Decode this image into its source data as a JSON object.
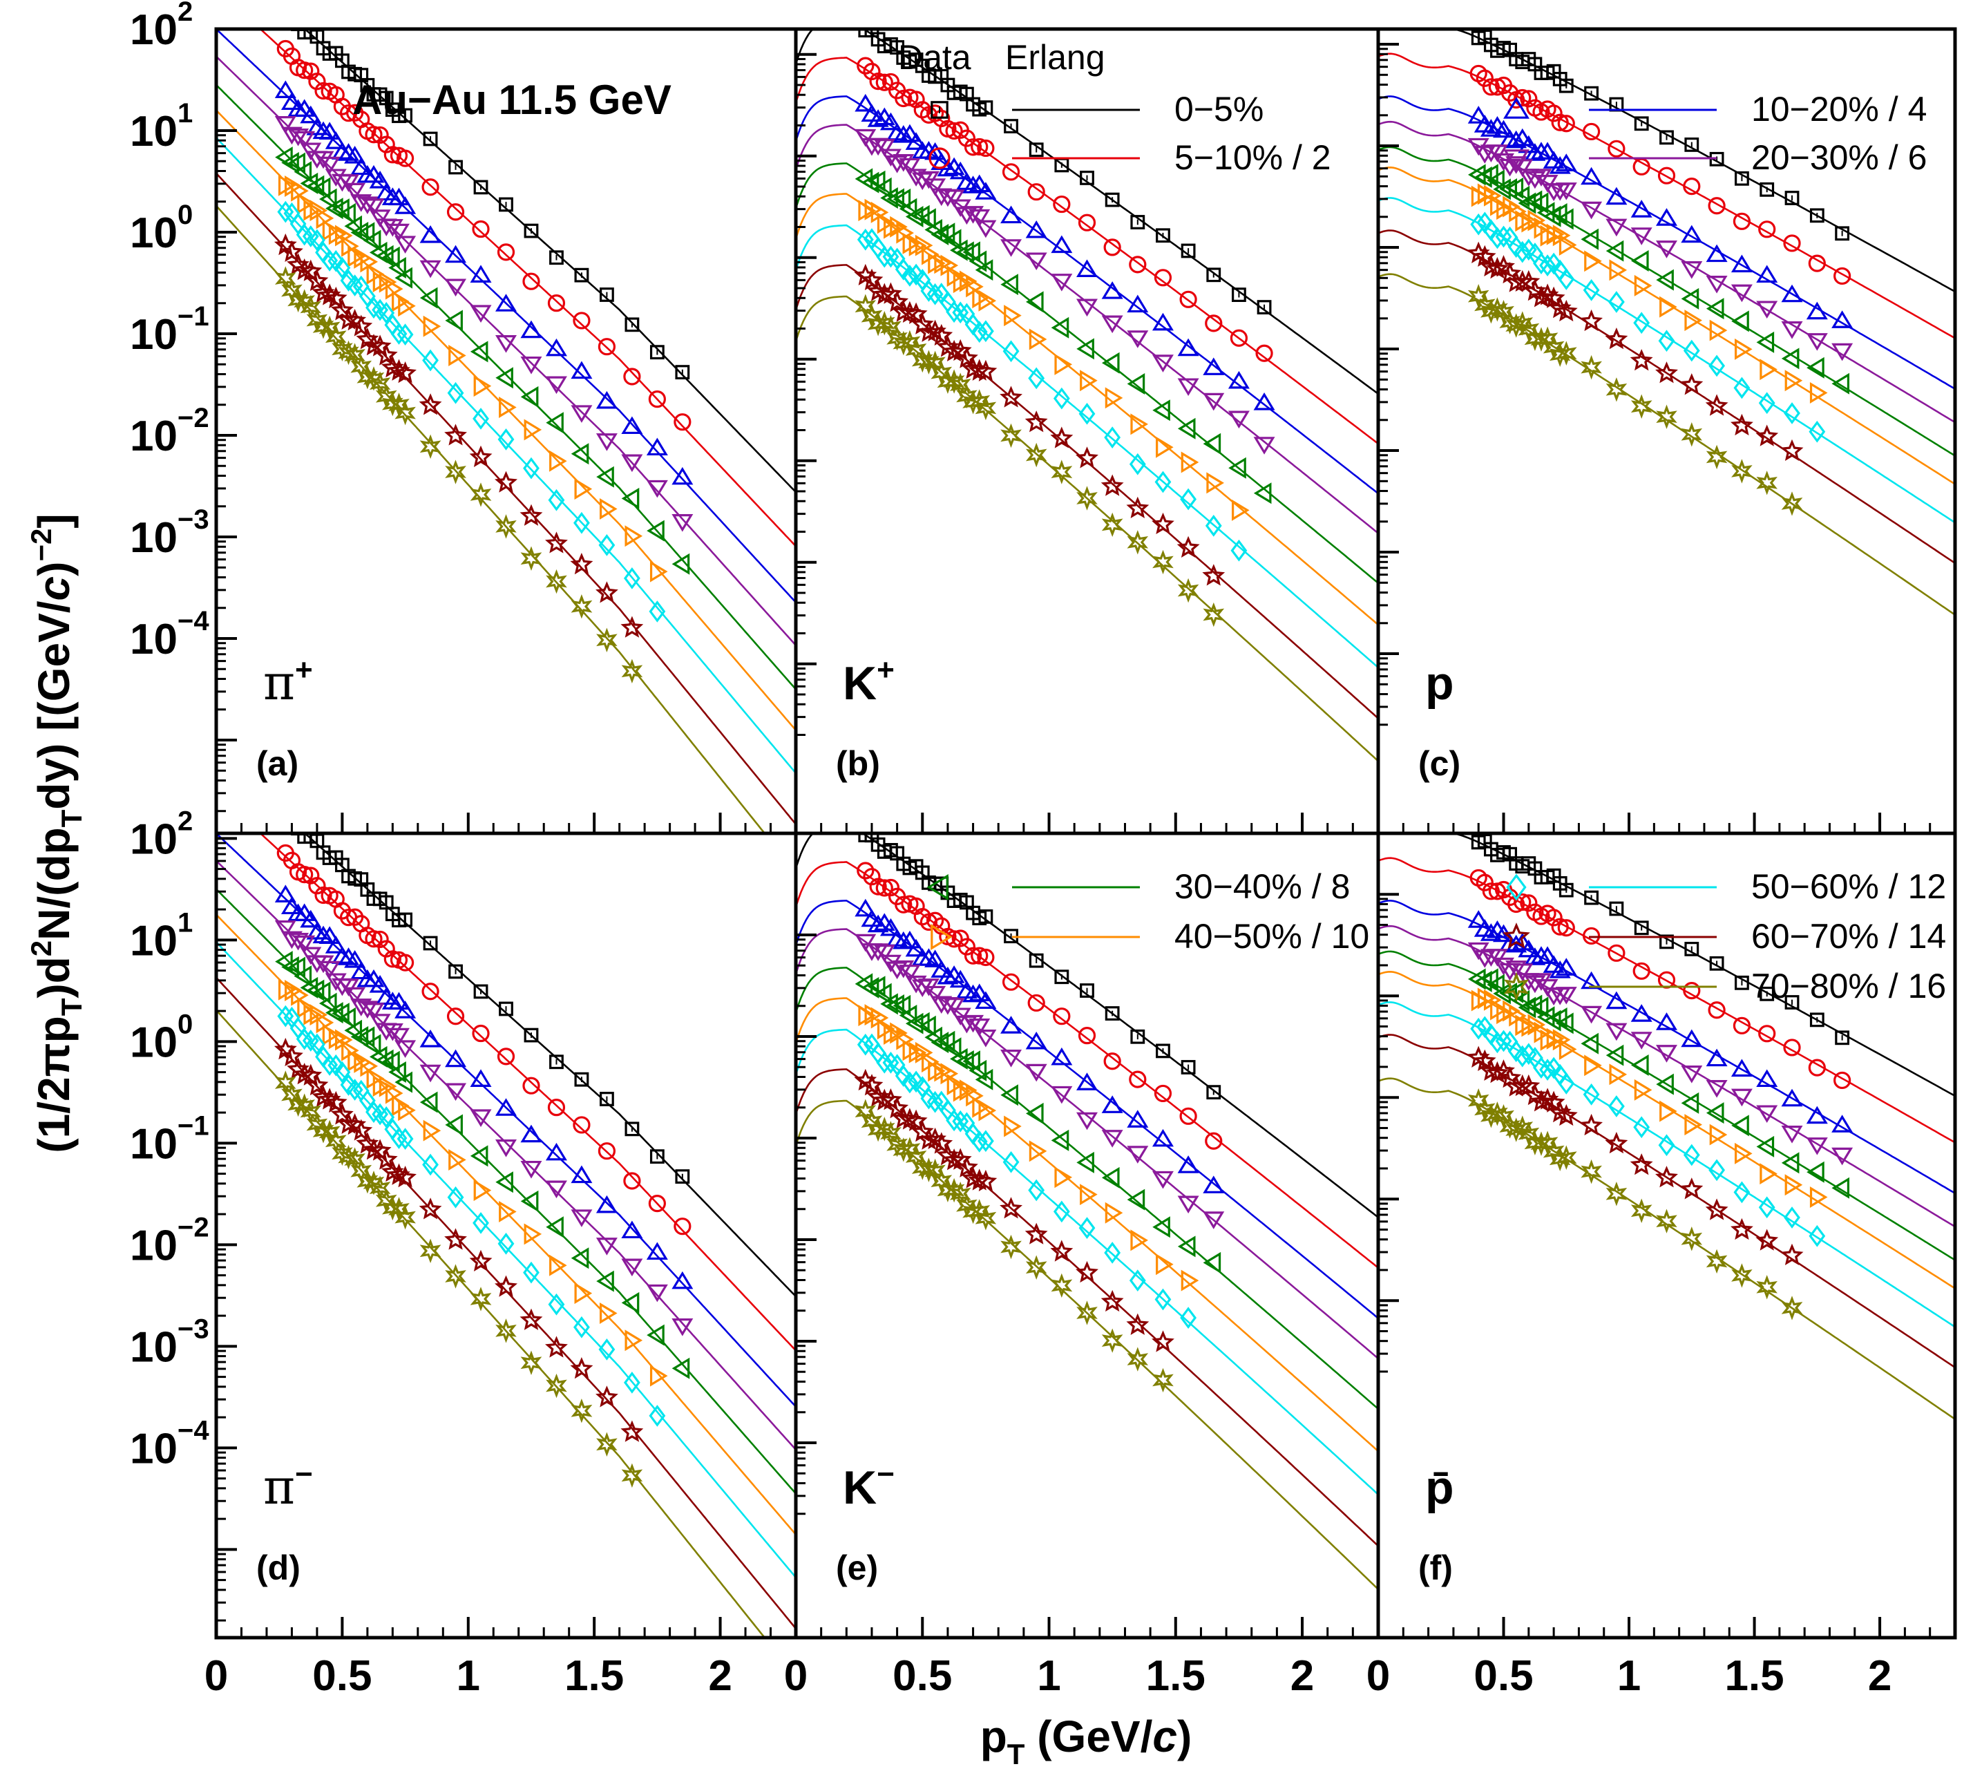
{
  "chart_data": {
    "type": "scatter",
    "title": "Au−Au 11.5 GeV",
    "xlabel": "p_T (GeV/c)",
    "xlabel_parts": {
      "p": "p",
      "sub": "T",
      "rest": " (GeV/",
      "c": "c",
      "close": ")"
    },
    "ylabel": "(1/2πp_T)d²N/(dp_T dy) [(GeV/c)⁻²]",
    "ylabel_parts": {
      "a": "(1/2πp",
      "b": "T",
      "c": ")d",
      "d": "2",
      "e": "N/(dp",
      "f": "T",
      "g": "dy) [(GeV/",
      "h": "c",
      "i": ")",
      "j": "−2",
      "k": "]"
    },
    "xlim": [
      0,
      2.3
    ],
    "x_ticks": [
      0,
      0.5,
      1,
      1.5,
      2
    ],
    "x_tick_labels": [
      "0",
      "0.5",
      "1",
      "1.5",
      "2"
    ],
    "y_scale": "log",
    "y_ticks_top": [
      {
        "base": "10",
        "exp": "2"
      },
      {
        "base": "10",
        "exp": "1"
      },
      {
        "base": "10",
        "exp": "0"
      },
      {
        "base": "10",
        "exp": "−1"
      },
      {
        "base": "10",
        "exp": "−2"
      },
      {
        "base": "10",
        "exp": "−3"
      },
      {
        "base": "10",
        "exp": "−4"
      }
    ],
    "y_ticks_bottom": [
      {
        "base": "10",
        "exp": "2"
      },
      {
        "base": "10",
        "exp": "1"
      },
      {
        "base": "10",
        "exp": "0"
      },
      {
        "base": "10",
        "exp": "−1"
      },
      {
        "base": "10",
        "exp": "−2"
      },
      {
        "base": "10",
        "exp": "−3"
      },
      {
        "base": "10",
        "exp": "−4"
      }
    ],
    "legend_header": {
      "data": "Data",
      "fit": "Erlang"
    },
    "centralities": [
      {
        "label": "0−5%",
        "marker": "square",
        "color": "#000000"
      },
      {
        "label": "5−10% / 2",
        "marker": "circle",
        "color": "#e8000b"
      },
      {
        "label": "10−20% / 4",
        "marker": "triangle-up",
        "color": "#0000e0"
      },
      {
        "label": "20−30% / 6",
        "marker": "triangle-down",
        "color": "#8b1a9b"
      },
      {
        "label": "30−40% / 8",
        "marker": "triangle-left",
        "color": "#008000"
      },
      {
        "label": "40−50% / 10",
        "marker": "triangle-right",
        "color": "#ff8c00"
      },
      {
        "label": "50−60% / 12",
        "marker": "diamond",
        "color": "#00e5ee"
      },
      {
        "label": "60−70% / 14",
        "marker": "star",
        "color": "#8b0000"
      },
      {
        "label": "70−80% / 16",
        "marker": "star-open",
        "color": "#808000"
      }
    ],
    "panels": [
      {
        "letter": "(a)",
        "particle": "π",
        "charge": "+",
        "greek": true,
        "kind": "pion",
        "y_top": 2.0,
        "pt_min": 0.275,
        "pt_max": 1.95,
        "slope": 5.1
      },
      {
        "letter": "(b)",
        "particle": "K",
        "charge": "+",
        "greek": false,
        "kind": "kaon",
        "y_top": 1.25,
        "pt_min": 0.275,
        "pt_max": 1.95,
        "slope": 3.9
      },
      {
        "letter": "(c)",
        "particle": "p",
        "charge": "",
        "greek": false,
        "kind": "proton",
        "y_top": 1.15,
        "pt_min": 0.4,
        "pt_max": 1.95,
        "slope": 2.9
      },
      {
        "letter": "(d)",
        "particle": "π",
        "charge": "−",
        "greek": true,
        "kind": "pion",
        "y_top": 2.05,
        "pt_min": 0.275,
        "pt_max": 1.95,
        "slope": 5.1
      },
      {
        "letter": "(e)",
        "particle": "K",
        "charge": "−",
        "greek": false,
        "kind": "kaon",
        "y_top": 1.0,
        "pt_min": 0.275,
        "pt_max": 1.75,
        "slope": 4.1
      },
      {
        "letter": "(f)",
        "particle": "p̄",
        "charge": "",
        "greek": false,
        "kind": "proton",
        "y_top": -0.4,
        "pt_min": 0.4,
        "pt_max": 1.95,
        "slope": 2.9
      }
    ]
  }
}
